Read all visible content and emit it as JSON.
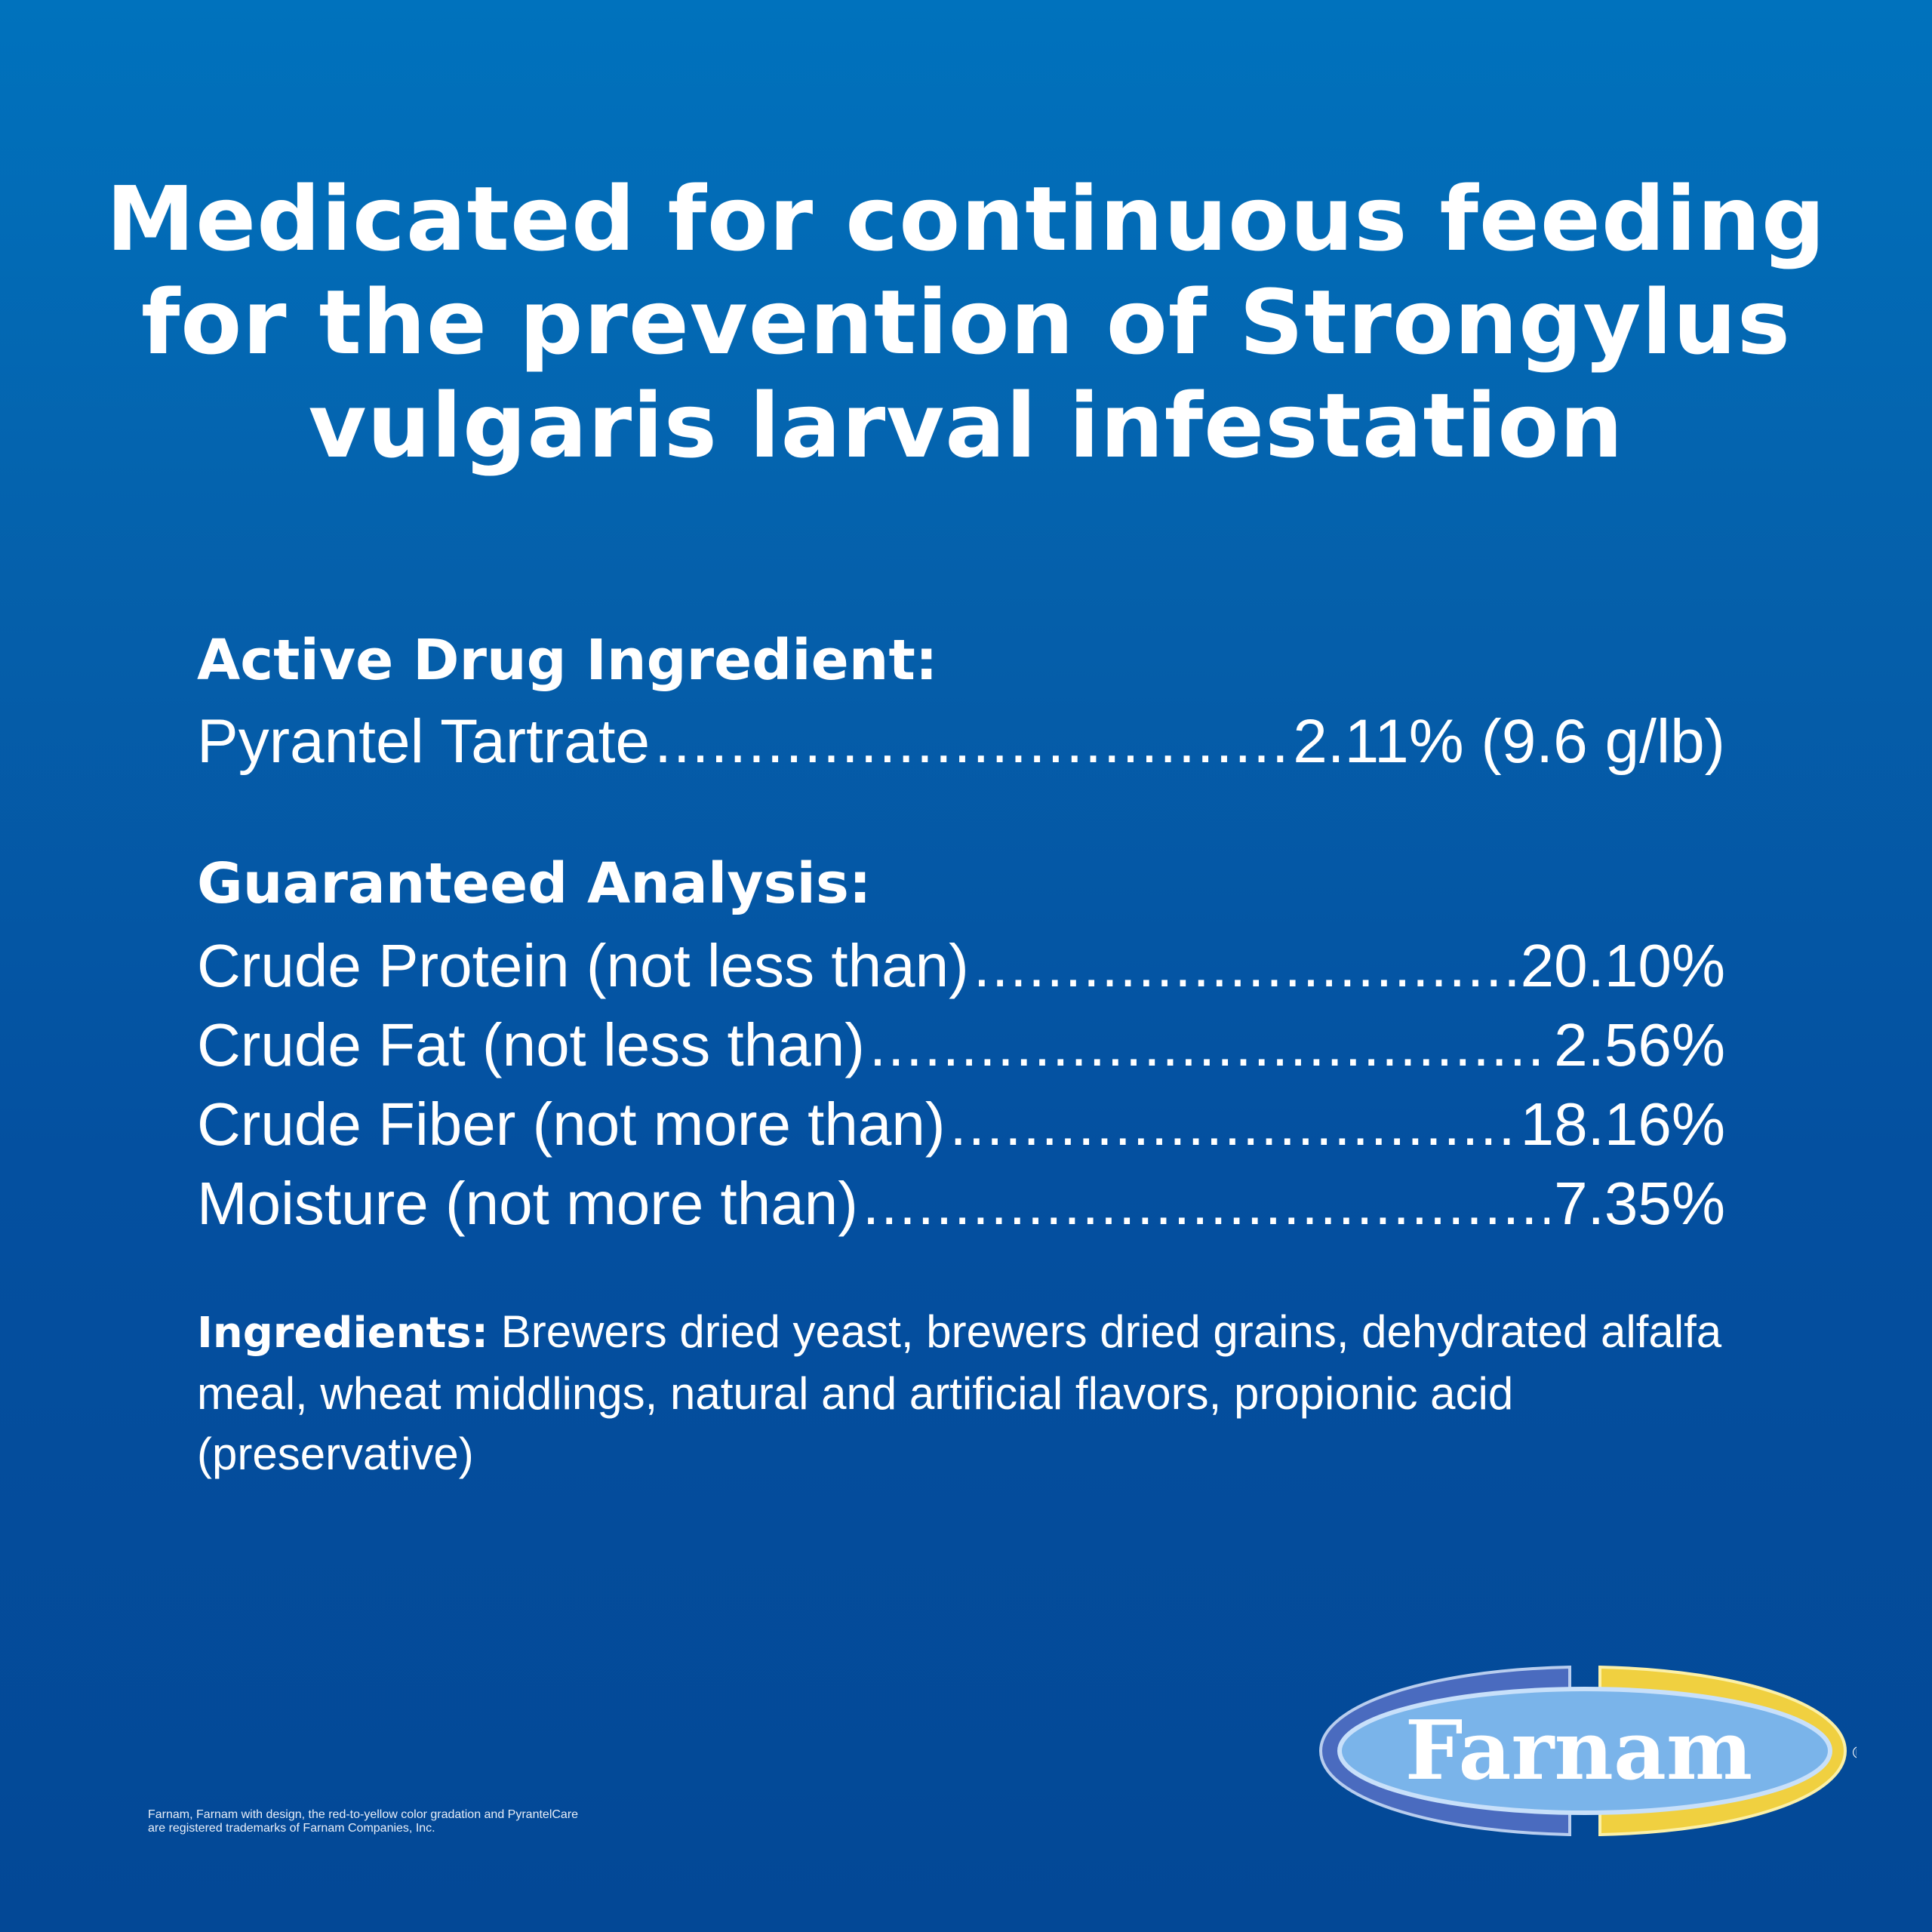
{
  "headline": {
    "lines": [
      "Medicated for continuous feeding",
      "for the prevention of Strongylus",
      "vulgaris larval infestation"
    ]
  },
  "active": {
    "heading": "Active Drug Ingredient:",
    "rows": [
      {
        "label": "Pyrantel Tartrate",
        "value": "2.11% (9.6 g/lb)"
      }
    ]
  },
  "analysis": {
    "heading": "Guaranteed Analysis:",
    "rows": [
      {
        "label": "Crude Protein (not less than)",
        "value": "20.10%"
      },
      {
        "label": "Crude Fat (not less than)",
        "value": "2.56%"
      },
      {
        "label": "Crude Fiber (not more than)",
        "value": "18.16%"
      },
      {
        "label": "Moisture (not more than)",
        "value": "7.35%"
      }
    ]
  },
  "ingredients": {
    "label": "Ingredients:",
    "text": "Brewers dried yeast, brewers dried grains, dehydrated alfalfa meal, wheat middlings, natural and artificial flavors, propionic acid (preservative)"
  },
  "footer": {
    "line1": "Farnam, Farnam with design, the red-to-yellow color gradation and PyrantelCare",
    "line2": "are registered trademarks of Farnam Companies, Inc."
  },
  "logo": {
    "text": "Farnam",
    "mark": "®",
    "colors": {
      "left": "#4a6bbf",
      "right": "#f0d040",
      "center": "#7ab4ea"
    }
  },
  "colors": {
    "bg_top": "#0072bd",
    "bg_bottom": "#034896"
  }
}
